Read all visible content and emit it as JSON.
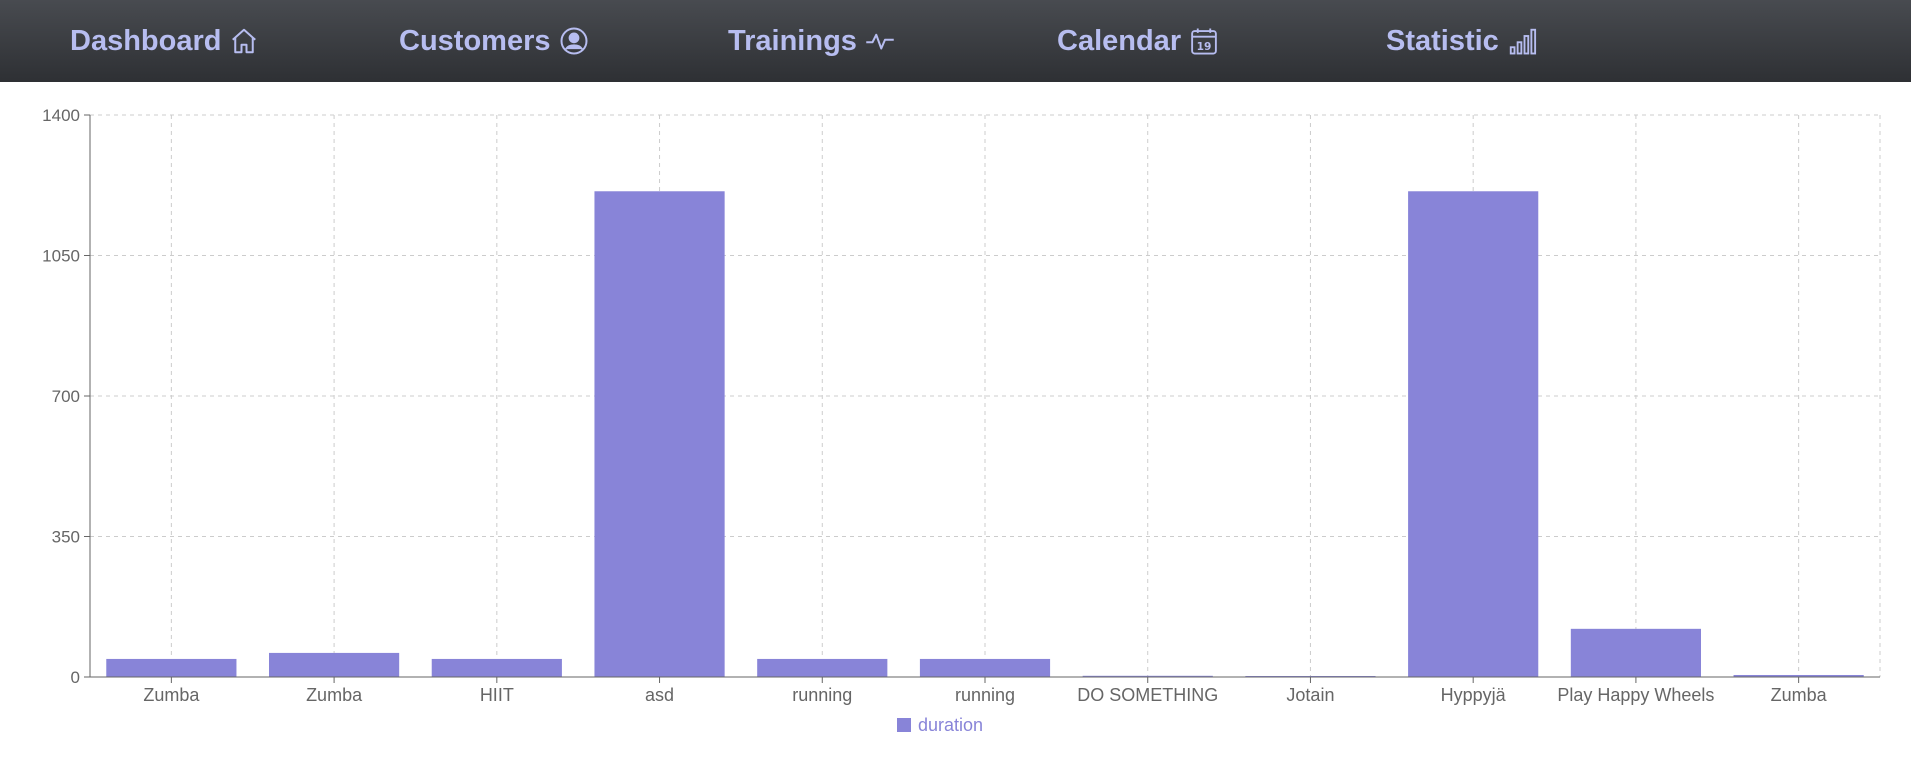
{
  "nav": {
    "items": [
      {
        "label": "Dashboard",
        "icon": "house-icon"
      },
      {
        "label": "Customers",
        "icon": "person-circle-icon"
      },
      {
        "label": "Trainings",
        "icon": "activity-icon"
      },
      {
        "label": "Calendar",
        "icon": "calendar-icon",
        "icon_text": "19"
      },
      {
        "label": "Statistic",
        "icon": "bar-chart-icon"
      }
    ]
  },
  "colors": {
    "nav_text": "#b7bdf0",
    "bar": "#8884d8",
    "grid": "#cccccc",
    "axis": "#666666"
  },
  "chart_data": {
    "type": "bar",
    "categories": [
      "Zumba",
      "Zumba",
      "HIIT",
      "asd",
      "running",
      "running",
      "DO SOMETHING",
      "Jotain",
      "Hyppyjä",
      "Play Happy Wheels",
      "Zumba"
    ],
    "series": [
      {
        "name": "duration",
        "values": [
          45,
          60,
          45,
          1210,
          45,
          45,
          3,
          1,
          1210,
          120,
          5
        ]
      }
    ],
    "yticks": [
      0,
      350,
      700,
      1050,
      1400
    ],
    "ylim": [
      0,
      1400
    ],
    "grid": true,
    "legend_position": "bottom-center"
  }
}
